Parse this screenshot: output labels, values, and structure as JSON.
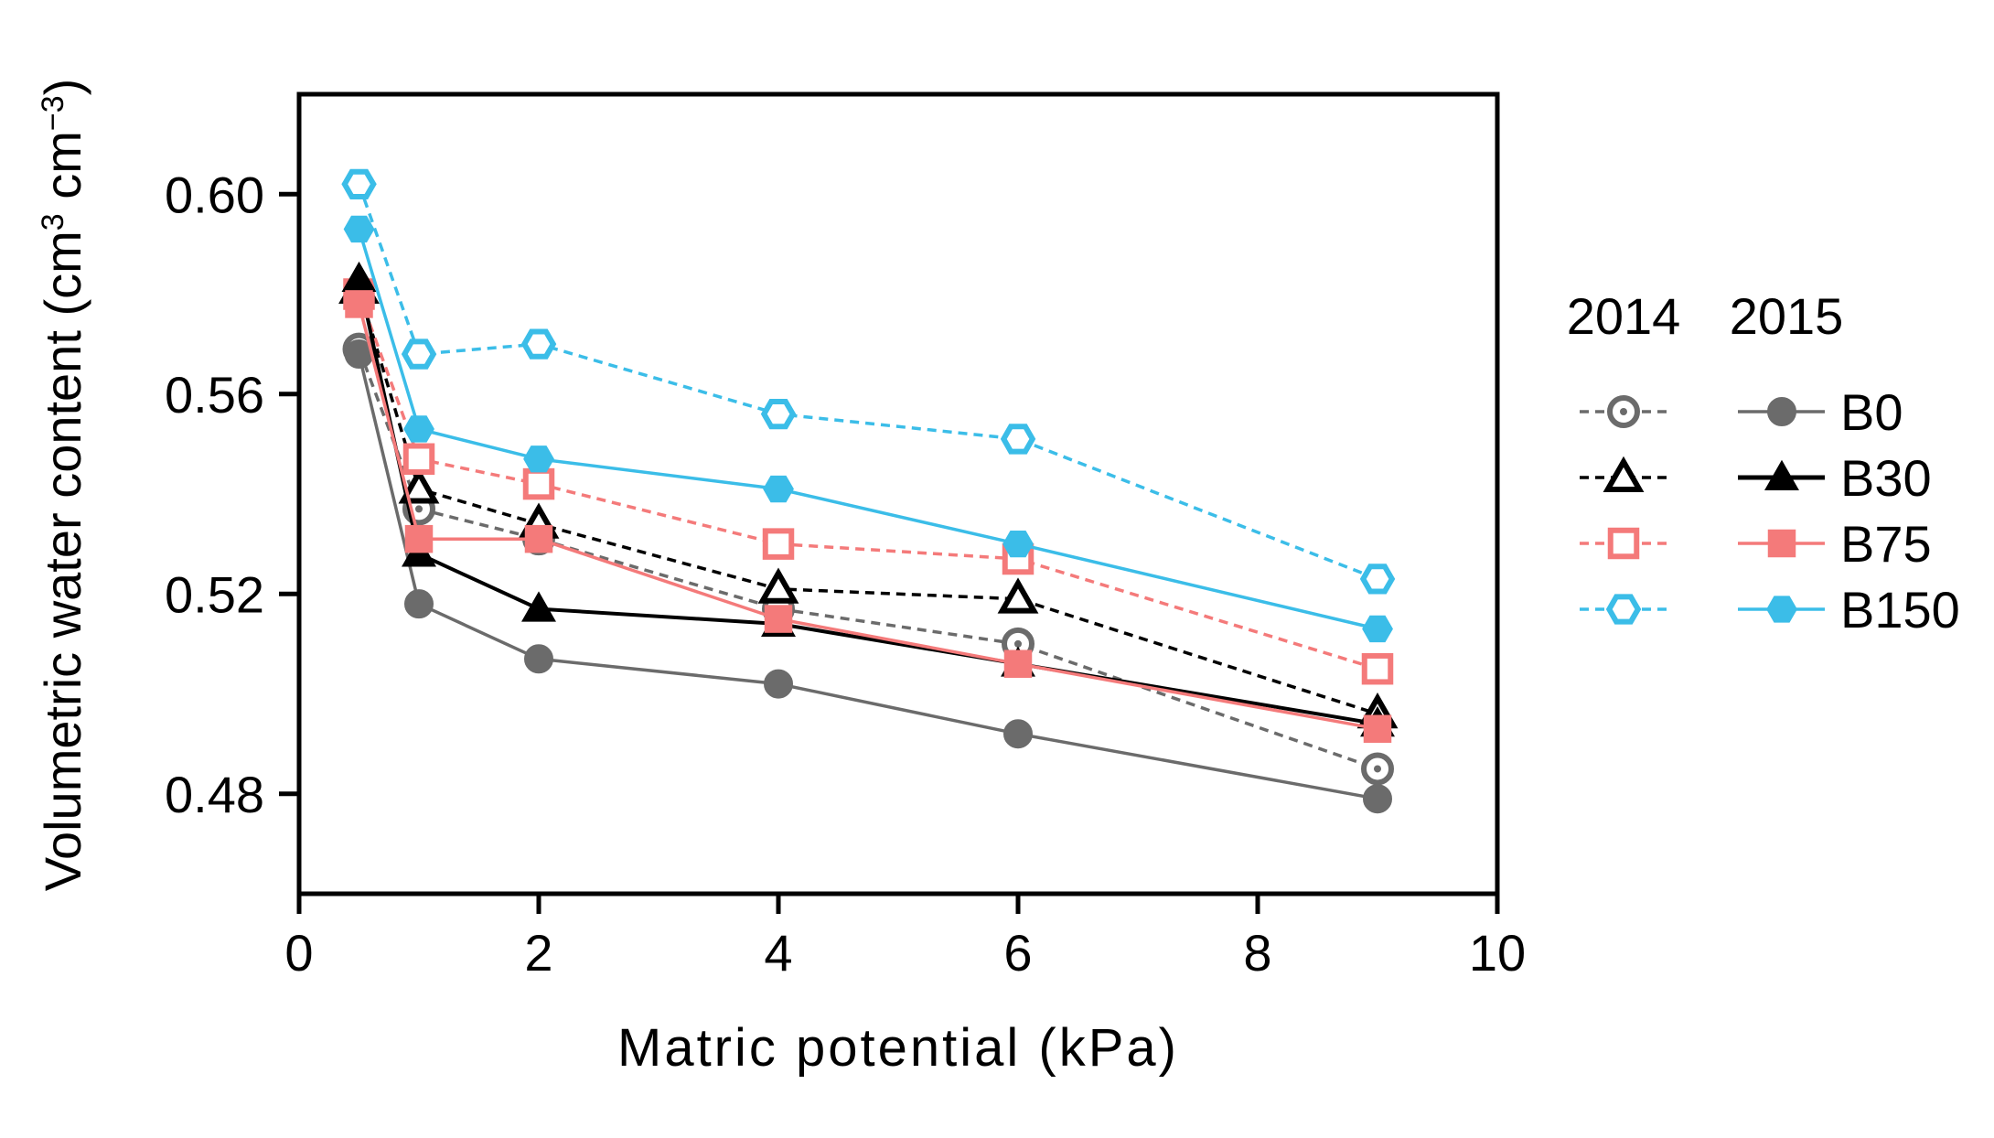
{
  "chart_data": {
    "type": "line",
    "title": "",
    "xlabel": "Matric potential (kPa)",
    "ylabel": "Volumetric water content (cm",
    "ylabel_sup1": "3",
    "ylabel_mid": " cm",
    "ylabel_sup2": "−3",
    "ylabel_end": ")",
    "xlim": [
      0,
      10
    ],
    "ylim": [
      0.46,
      0.62
    ],
    "xticks": [
      "0",
      "2",
      "4",
      "6",
      "8",
      "10"
    ],
    "yticks": [
      "0.48",
      "0.52",
      "0.56",
      "0.60"
    ],
    "grid": false,
    "legend": {
      "position": "right",
      "col_header_2014": "2014",
      "col_header_2015": "2015",
      "labels": [
        "B0",
        "B30",
        "B75",
        "B150"
      ]
    },
    "x": [
      0.5,
      1,
      2,
      4,
      6,
      9
    ],
    "series": [
      {
        "name": "B0 2014",
        "treatment": "B0",
        "year": "2014",
        "color": "#6b6b6b",
        "dashed": true,
        "marker": "circle",
        "filled": false,
        "values": [
          0.569,
          0.537,
          0.531,
          0.517,
          0.51,
          0.485
        ]
      },
      {
        "name": "B30 2014",
        "treatment": "B30",
        "year": "2014",
        "color": "#000000",
        "dashed": true,
        "marker": "triangle",
        "filled": false,
        "values": [
          0.581,
          0.541,
          0.534,
          0.521,
          0.519,
          0.496
        ]
      },
      {
        "name": "B75 2014",
        "treatment": "B75",
        "year": "2014",
        "color": "#f47a7a",
        "dashed": true,
        "marker": "square",
        "filled": false,
        "values": [
          0.58,
          0.547,
          0.542,
          0.53,
          0.527,
          0.505
        ]
      },
      {
        "name": "B150 2014",
        "treatment": "B150",
        "year": "2014",
        "color": "#3bbde8",
        "dashed": true,
        "marker": "hexagon",
        "filled": false,
        "values": [
          0.602,
          0.568,
          0.57,
          0.556,
          0.551,
          0.523
        ]
      },
      {
        "name": "B0 2015",
        "treatment": "B0",
        "year": "2015",
        "color": "#6b6b6b",
        "dashed": false,
        "marker": "circle",
        "filled": true,
        "values": [
          0.568,
          0.518,
          0.507,
          0.502,
          0.492,
          0.479
        ]
      },
      {
        "name": "B30 2015",
        "treatment": "B30",
        "year": "2015",
        "color": "#000000",
        "dashed": false,
        "marker": "triangle",
        "filled": true,
        "values": [
          0.583,
          0.528,
          0.517,
          0.514,
          0.506,
          0.494
        ]
      },
      {
        "name": "B75 2015",
        "treatment": "B75",
        "year": "2015",
        "color": "#f47a7a",
        "dashed": false,
        "marker": "square",
        "filled": true,
        "values": [
          0.578,
          0.531,
          0.531,
          0.515,
          0.506,
          0.493
        ]
      },
      {
        "name": "B150 2015",
        "treatment": "B150",
        "year": "2015",
        "color": "#3bbde8",
        "dashed": false,
        "marker": "hexagon",
        "filled": true,
        "values": [
          0.593,
          0.553,
          0.547,
          0.541,
          0.53,
          0.513
        ]
      }
    ]
  }
}
